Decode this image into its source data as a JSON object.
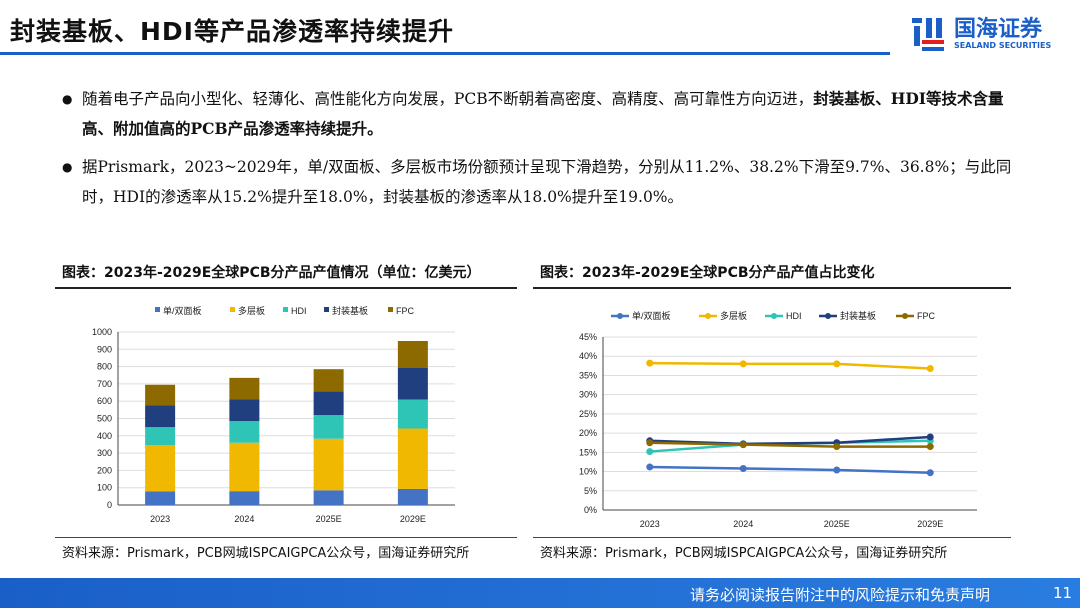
{
  "header": {
    "title": "封装基板、HDI等产品渗透率持续提升",
    "logo_cn": "国海证券",
    "logo_en": "SEALAND SECURITIES"
  },
  "bullets": [
    {
      "text": "随着电子产品向小型化、轻薄化、高性能化方向发展，PCB不断朝着高密度、高精度、高可靠性方向迈进，",
      "bold": "封装基板、HDI等技术含量高、附加值高的PCB产品渗透率持续提升。"
    },
    {
      "text": "据Prismark，2023~2029年，单/双面板、多层板市场份额预计呈现下滑趋势，分别从11.2%、38.2%下滑至9.7%、36.8%；与此同时，HDI的渗透率从15.2%提升至18.0%，封装基板的渗透率从18.0%提升至19.0%。",
      "bold": ""
    }
  ],
  "chart_data": [
    {
      "type": "bar",
      "stacked": true,
      "title": "图表：2023年-2029E全球PCB分产品产值情况（单位：亿美元）",
      "categories": [
        "2023",
        "2024",
        "2025E",
        "2029E"
      ],
      "ylim": [
        0,
        1000
      ],
      "yticks": [
        "0",
        "100",
        "200",
        "300",
        "400",
        "500",
        "600",
        "700",
        "800",
        "900",
        "1000"
      ],
      "series": [
        {
          "name": "单/双面板",
          "color": "#4472c4",
          "values": [
            78,
            80,
            85,
            93
          ]
        },
        {
          "name": "多层板",
          "color": "#f0b800",
          "values": [
            267,
            280,
            298,
            349
          ]
        },
        {
          "name": "HDI",
          "color": "#2ec4b6",
          "values": [
            105,
            125,
            137,
            168
          ]
        },
        {
          "name": "封装基板",
          "color": "#203f7f",
          "values": [
            125,
            125,
            137,
            182
          ]
        },
        {
          "name": "FPC",
          "color": "#8c6a00",
          "values": [
            120,
            125,
            128,
            156
          ]
        }
      ],
      "legend": "top",
      "source": "资料来源：Prismark，PCB网城ISPCAIGPCA公众号，国海证券研究所"
    },
    {
      "type": "line",
      "title": "图表：2023年-2029E全球PCB分产品产值占比变化",
      "categories": [
        "2023",
        "2024",
        "2025E",
        "2029E"
      ],
      "ylim": [
        0,
        45
      ],
      "yticks": [
        "0%",
        "5%",
        "10%",
        "15%",
        "20%",
        "25%",
        "30%",
        "35%",
        "40%",
        "45%"
      ],
      "series": [
        {
          "name": "单/双面板",
          "color": "#4472c4",
          "values": [
            11.2,
            10.8,
            10.4,
            9.7
          ]
        },
        {
          "name": "多层板",
          "color": "#f0b800",
          "values": [
            38.2,
            38.0,
            38.0,
            36.8
          ]
        },
        {
          "name": "HDI",
          "color": "#2ec4b6",
          "values": [
            15.2,
            17.0,
            17.5,
            18.0
          ]
        },
        {
          "name": "封装基板",
          "color": "#203f7f",
          "values": [
            18.0,
            17.2,
            17.5,
            19.0
          ]
        },
        {
          "name": "FPC",
          "color": "#8c6a00",
          "values": [
            17.5,
            17.0,
            16.5,
            16.5
          ]
        }
      ],
      "legend": "top",
      "source": "资料来源：Prismark，PCB网城ISPCAIGPCA公众号，国海证券研究所"
    }
  ],
  "footer": {
    "disclaimer": "请务必阅读报告附注中的风险提示和免责声明",
    "page": "11"
  }
}
